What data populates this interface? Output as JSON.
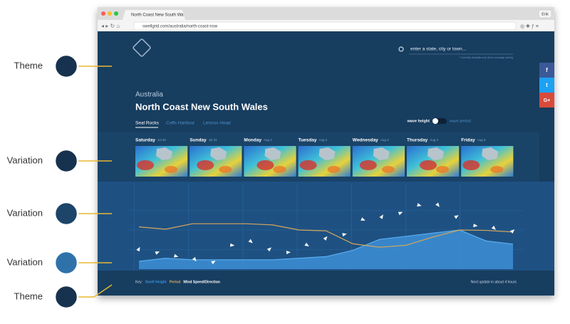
{
  "annotations": [
    "Theme",
    "Variation",
    "Variation",
    "Variation",
    "Theme"
  ],
  "browser": {
    "tab_title": "North Coast New South Wa",
    "url": "swellgrid.com/australia/north-coast-nsw",
    "user": "Erik"
  },
  "header": {
    "search_placeholder": "enter a state, city or town...",
    "search_hint": "* Currently Australia only. More coverage coming"
  },
  "region": "Australia",
  "title": "North Coast New South Wales",
  "tabs": [
    "Seal Rocks",
    "Coffs Harbour",
    "Lennox Head"
  ],
  "toggle": {
    "left": "wave height",
    "right": "wave period"
  },
  "social": [
    "f",
    "t",
    "G+"
  ],
  "days": [
    {
      "name": "Saturday",
      "date": "Jul 30"
    },
    {
      "name": "Sunday",
      "date": "Jul 31"
    },
    {
      "name": "Monday",
      "date": "Aug 1"
    },
    {
      "name": "Tuesday",
      "date": "Aug 2"
    },
    {
      "name": "Wednesday",
      "date": "Aug 3"
    },
    {
      "name": "Thursday",
      "date": "Aug 4"
    },
    {
      "name": "Friday",
      "date": "Aug 5"
    }
  ],
  "chart_data": {
    "type": "area",
    "ylim": [
      0,
      5
    ],
    "y2lim": [
      0,
      20
    ],
    "series": [
      {
        "name": "Swell Height",
        "color": "#3d8fd6",
        "values": [
          0.5,
          0.7,
          0.6,
          0.6,
          0.6,
          0.6,
          0.7,
          0.8,
          1.2,
          1.9,
          2.1,
          2.3,
          2.5,
          1.8,
          1.6
        ]
      },
      {
        "name": "Period",
        "color": "#d9a75a",
        "axis": "y2",
        "values": [
          10.8,
          10.2,
          11.6,
          11.6,
          11.6,
          11.3,
          10,
          9.8,
          6.5,
          5.6,
          6.1,
          8.2,
          10,
          9.9,
          9.5
        ]
      },
      {
        "name": "Wind Speed/Direction",
        "color": "#ffffff",
        "axis": "y2",
        "values": [
          5.2,
          4.3,
          3.3,
          2.4,
          1.9,
          6.1,
          7,
          5.2,
          4.3,
          6.1,
          8,
          8.9,
          12.6,
          13.5,
          14.4,
          16.3,
          16.3,
          13.5,
          11.1,
          10.4,
          9.8
        ]
      }
    ]
  },
  "footer": {
    "key": "Key:",
    "update": "Next update in about 4 hours"
  }
}
